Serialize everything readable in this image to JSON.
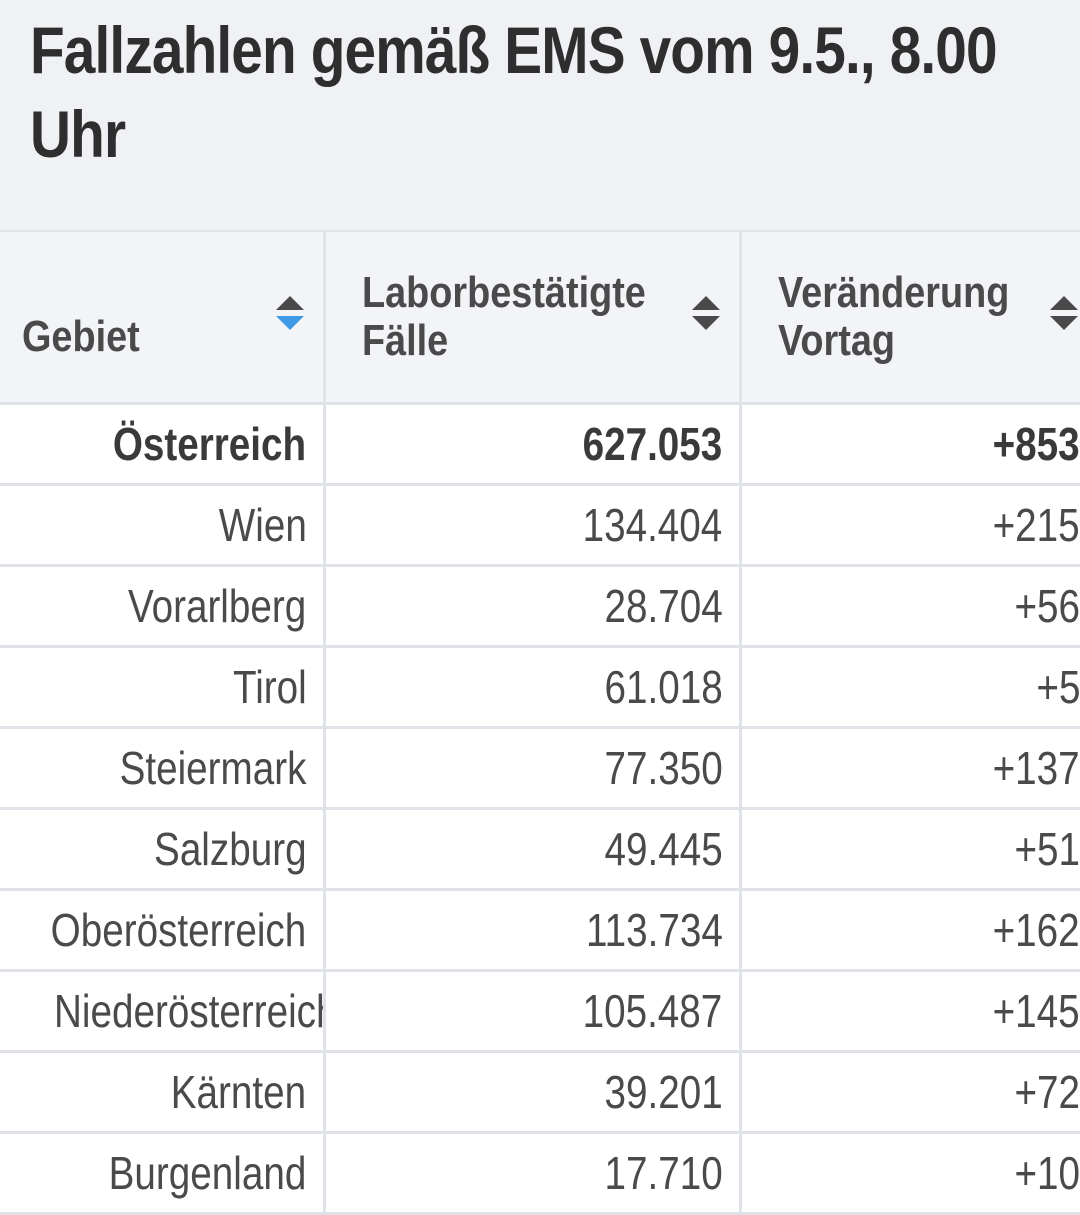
{
  "title": "Fallzahlen gemäß EMS vom 9.5., 8.00 Uhr",
  "colors": {
    "header_bg": "#eff1f5",
    "grid_line": "#dfe2e7",
    "sort_active": "#3f9be6",
    "sort_inactive": "#4a4a4a",
    "text": "#4a4a4a"
  },
  "table": {
    "columns": [
      {
        "label": "Gebiet",
        "sort_icon": "sort-updown-icon",
        "sort_state": "descending"
      },
      {
        "label": "Laborbestätigte\nFälle",
        "sort_icon": "sort-updown-icon",
        "sort_state": "none"
      },
      {
        "label": "Veränderung\nVortag",
        "sort_icon": "sort-updown-icon",
        "sort_state": "none"
      }
    ],
    "rows": [
      {
        "gebiet": "Österreich",
        "faelle": "627.053",
        "veraenderung": "+853",
        "bold": true
      },
      {
        "gebiet": "Wien",
        "faelle": "134.404",
        "veraenderung": "+215"
      },
      {
        "gebiet": "Vorarlberg",
        "faelle": "28.704",
        "veraenderung": "+56"
      },
      {
        "gebiet": "Tirol",
        "faelle": "61.018",
        "veraenderung": "+5"
      },
      {
        "gebiet": "Steiermark",
        "faelle": "77.350",
        "veraenderung": "+137"
      },
      {
        "gebiet": "Salzburg",
        "faelle": "49.445",
        "veraenderung": "+51"
      },
      {
        "gebiet": "Oberösterreich",
        "faelle": "113.734",
        "veraenderung": "+162"
      },
      {
        "gebiet": "Niederösterreich",
        "faelle": "105.487",
        "veraenderung": "+145"
      },
      {
        "gebiet": "Kärnten",
        "faelle": "39.201",
        "veraenderung": "+72"
      },
      {
        "gebiet": "Burgenland",
        "faelle": "17.710",
        "veraenderung": "+10"
      }
    ]
  }
}
